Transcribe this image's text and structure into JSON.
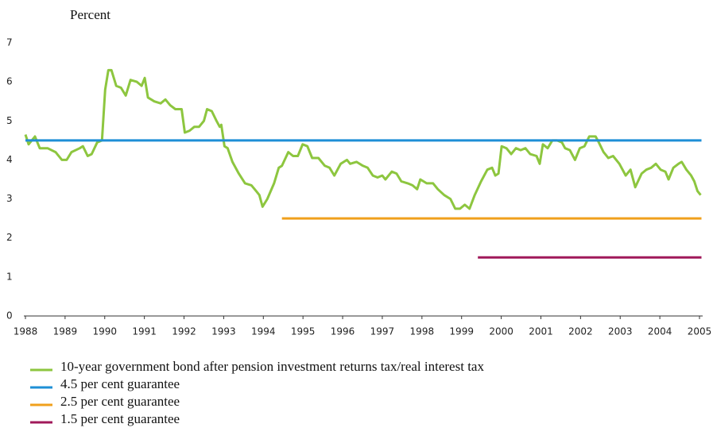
{
  "chart_data": {
    "type": "line",
    "y_label": "Percent",
    "xlim": [
      1987.96,
      2005.08
    ],
    "ylim": [
      0,
      7
    ],
    "xticks": [
      1988,
      1989,
      1990,
      1991,
      1992,
      1993,
      1994,
      1995,
      1996,
      1997,
      1998,
      1999,
      2000,
      2001,
      2002,
      2003,
      2004,
      2005
    ],
    "yticks": [
      0,
      1,
      2,
      3,
      4,
      5,
      6,
      7
    ],
    "grid": false,
    "legend": "bottom",
    "series": [
      {
        "name": "10-year government bond after pension investment returns tax/real interest tax",
        "color": "#8dc63f",
        "x": [
          1988.0,
          1988.08,
          1988.24,
          1988.36,
          1988.56,
          1988.76,
          1988.92,
          1989.04,
          1989.16,
          1989.37,
          1989.45,
          1989.57,
          1989.67,
          1989.81,
          1989.93,
          1990.01,
          1990.09,
          1990.17,
          1990.29,
          1990.41,
          1990.53,
          1990.65,
          1990.81,
          1990.93,
          1991.01,
          1991.09,
          1991.25,
          1991.41,
          1991.53,
          1991.65,
          1991.78,
          1991.94,
          1992.02,
          1992.14,
          1992.26,
          1992.38,
          1992.5,
          1992.58,
          1992.7,
          1992.82,
          1992.9,
          1992.94,
          1993.02,
          1993.1,
          1993.22,
          1993.38,
          1993.54,
          1993.7,
          1993.82,
          1993.9,
          1993.98,
          1994.1,
          1994.27,
          1994.39,
          1994.47,
          1994.63,
          1994.75,
          1994.87,
          1994.99,
          1995.11,
          1995.23,
          1995.39,
          1995.55,
          1995.67,
          1995.79,
          1995.95,
          1996.11,
          1996.19,
          1996.35,
          1996.51,
          1996.63,
          1996.76,
          1996.88,
          1997.0,
          1997.08,
          1997.24,
          1997.36,
          1997.48,
          1997.64,
          1997.76,
          1997.88,
          1997.96,
          1998.12,
          1998.28,
          1998.4,
          1998.56,
          1998.72,
          1998.84,
          1998.96,
          1999.08,
          1999.2,
          1999.33,
          1999.49,
          1999.65,
          1999.77,
          1999.85,
          1999.93,
          2000.01,
          2000.13,
          2000.25,
          2000.37,
          2000.49,
          2000.61,
          2000.73,
          2000.89,
          2000.97,
          2001.05,
          2001.17,
          2001.29,
          2001.41,
          2001.53,
          2001.61,
          2001.73,
          2001.86,
          2001.98,
          2002.1,
          2002.22,
          2002.38,
          2002.46,
          2002.58,
          2002.7,
          2002.82,
          2002.98,
          2003.14,
          2003.26,
          2003.38,
          2003.54,
          2003.66,
          2003.78,
          2003.9,
          2004.02,
          2004.14,
          2004.22,
          2004.34,
          2004.47,
          2004.55,
          2004.67,
          2004.79,
          2004.87,
          2004.95,
          2005.03
        ],
        "values": [
          4.65,
          4.4,
          4.6,
          4.3,
          4.3,
          4.2,
          4.0,
          4.0,
          4.2,
          4.3,
          4.35,
          4.1,
          4.15,
          4.45,
          4.5,
          5.8,
          6.3,
          6.3,
          5.9,
          5.85,
          5.65,
          6.05,
          6.0,
          5.9,
          6.1,
          5.6,
          5.5,
          5.45,
          5.55,
          5.4,
          5.3,
          5.3,
          4.7,
          4.75,
          4.85,
          4.85,
          5.0,
          5.3,
          5.25,
          5.0,
          4.85,
          4.9,
          4.35,
          4.3,
          3.95,
          3.65,
          3.4,
          3.35,
          3.2,
          3.1,
          2.8,
          3.0,
          3.4,
          3.8,
          3.85,
          4.2,
          4.1,
          4.1,
          4.4,
          4.35,
          4.05,
          4.05,
          3.85,
          3.8,
          3.6,
          3.9,
          4.0,
          3.9,
          3.95,
          3.85,
          3.8,
          3.6,
          3.55,
          3.6,
          3.5,
          3.7,
          3.65,
          3.45,
          3.4,
          3.35,
          3.25,
          3.5,
          3.4,
          3.4,
          3.25,
          3.1,
          3.0,
          2.75,
          2.75,
          2.85,
          2.75,
          3.1,
          3.45,
          3.75,
          3.8,
          3.6,
          3.65,
          4.35,
          4.3,
          4.15,
          4.3,
          4.25,
          4.3,
          4.15,
          4.1,
          3.9,
          4.4,
          4.3,
          4.5,
          4.5,
          4.45,
          4.3,
          4.25,
          4.0,
          4.3,
          4.35,
          4.6,
          4.6,
          4.45,
          4.2,
          4.05,
          4.1,
          3.9,
          3.6,
          3.75,
          3.3,
          3.65,
          3.75,
          3.8,
          3.9,
          3.75,
          3.7,
          3.5,
          3.8,
          3.9,
          3.95,
          3.75,
          3.6,
          3.45,
          3.2,
          3.1
        ]
      },
      {
        "name": "4.5 per cent guarantee",
        "color": "#1e8fd6",
        "x": [
          1988.0,
          2005.05
        ],
        "values": [
          4.5,
          4.5
        ]
      },
      {
        "name": "2.5 per cent guarantee",
        "color": "#f0a01c",
        "x": [
          1994.47,
          2005.05
        ],
        "values": [
          2.5,
          2.5
        ]
      },
      {
        "name": "1.5 per cent guarantee",
        "color": "#a0195a",
        "x": [
          1999.41,
          2005.05
        ],
        "values": [
          1.5,
          1.5
        ]
      }
    ]
  }
}
